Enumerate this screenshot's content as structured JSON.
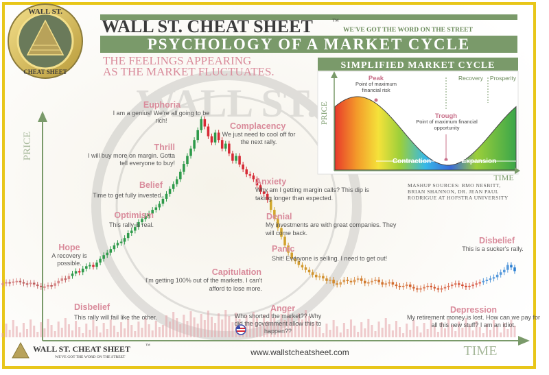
{
  "header": {
    "brand": "WALL ST. CHEAT SHEET",
    "tm": "™",
    "tagline": "WE'VE GOT THE WORD ON THE STREET",
    "main_title": "PSYCHOLOGY OF A MARKET CYCLE",
    "subtitle_line1": "THE FEELINGS APPEARING",
    "subtitle_line2": "AS THE MARKET FLUCTUATES."
  },
  "logo": {
    "top_text": "WALL ST.",
    "bottom_text": "CHEAT SHEET"
  },
  "watermark": {
    "text": "WALL ST."
  },
  "chart_data": [
    {
      "type": "line",
      "title": "",
      "xlabel": "TIME",
      "ylabel": "PRICE",
      "grid": false,
      "series": [
        {
          "values": [
            50,
            52,
            51,
            53,
            54,
            52,
            50,
            49,
            51,
            48,
            46,
            44,
            45,
            47,
            46,
            50,
            54,
            58,
            57,
            62,
            66,
            70,
            68,
            74,
            78,
            80,
            77,
            84,
            90,
            96,
            100,
            106,
            112,
            116,
            118,
            124,
            132,
            136,
            142,
            150,
            155,
            160,
            164,
            170,
            174,
            180,
            188,
            196,
            204,
            212,
            220,
            232,
            245,
            258,
            270,
            284,
            300,
            318,
            306,
            290,
            280,
            296,
            284,
            270,
            278,
            262,
            250,
            258,
            244,
            236,
            228,
            226,
            220,
            210,
            200,
            196,
            186,
            170,
            156,
            140,
            126,
            112,
            100,
            90,
            86,
            80,
            76,
            72,
            68,
            64,
            60,
            62,
            58,
            54,
            56,
            50,
            48,
            52,
            56,
            54,
            52,
            56,
            58,
            54,
            50,
            52,
            54,
            56,
            52,
            48,
            50,
            52,
            48,
            46,
            44,
            46,
            48,
            44,
            42,
            40,
            42,
            44,
            46,
            44,
            42,
            40,
            42,
            44,
            46,
            48,
            50,
            48,
            46,
            44,
            46,
            48,
            50,
            52,
            54,
            56,
            58,
            60,
            64,
            68,
            72,
            80,
            76,
            70
          ]
        }
      ],
      "phases": [
        {
          "name": "Disbelief",
          "text": "This rally will fail like the other."
        },
        {
          "name": "Hope",
          "text": "A recovery is possible."
        },
        {
          "name": "Optimism",
          "text": "This rally is real."
        },
        {
          "name": "Belief",
          "text": "Time to get fully invested."
        },
        {
          "name": "Thrill",
          "text": "I will buy more on margin. Gotta tell everyone to buy!"
        },
        {
          "name": "Euphoria",
          "text": "I am a genius! We're all going to be rich!"
        },
        {
          "name": "Complacency",
          "text": "We just need to cool off for the next rally."
        },
        {
          "name": "Anxiety",
          "text": "Why am I getting margin calls? This dip is taking longer than expected."
        },
        {
          "name": "Denial",
          "text": "My investments are with great companies. They will come back."
        },
        {
          "name": "Panic",
          "text": "Shit! Everyone is selling. I need to get out!"
        },
        {
          "name": "Capitulation",
          "text": "I'm getting 100% out of the markets. I can't afford to lose more."
        },
        {
          "name": "Anger",
          "text": "Who shorted the market?? Why did the government allow this to happen??"
        },
        {
          "name": "Depression",
          "text": "My retirement money is lost. How can we pay for all this new stuff? I am an idiot."
        },
        {
          "name": "Disbelief",
          "text": "This is a sucker's rally."
        }
      ]
    },
    {
      "type": "area",
      "title": "SIMPLIFIED MARKET CYCLE",
      "xlabel": "TIME",
      "ylabel": "PRICE",
      "grid": false,
      "annotations": [
        {
          "label": "Peak",
          "text": "Point of maximum financial risk"
        },
        {
          "label": "Trough",
          "text": "Point of maximum financial opportunity"
        }
      ],
      "phases": [
        "Recovery",
        "Prosperity",
        "Contraction",
        "Expansion"
      ]
    }
  ],
  "sources": {
    "line1": "MASHUP SOURCES: BMO NESBITT,",
    "line2": "BRIAN SHANNON, DR. JEAN PAUL",
    "line3": "RODRIGUE AT HOFSTRA UNIVERSITY"
  },
  "footer": {
    "brand": "WALL ST. CHEAT SHEET",
    "tm": "™",
    "tagline": "WE'VE GOT THE WORD ON THE STREET",
    "url": "www.wallstcheatsheet.com"
  },
  "colors": {
    "border": "#e8c619",
    "green": "#7a9a6a",
    "pink": "#d98b9b",
    "up": "#2e9a4a",
    "down": "#d62a35"
  }
}
